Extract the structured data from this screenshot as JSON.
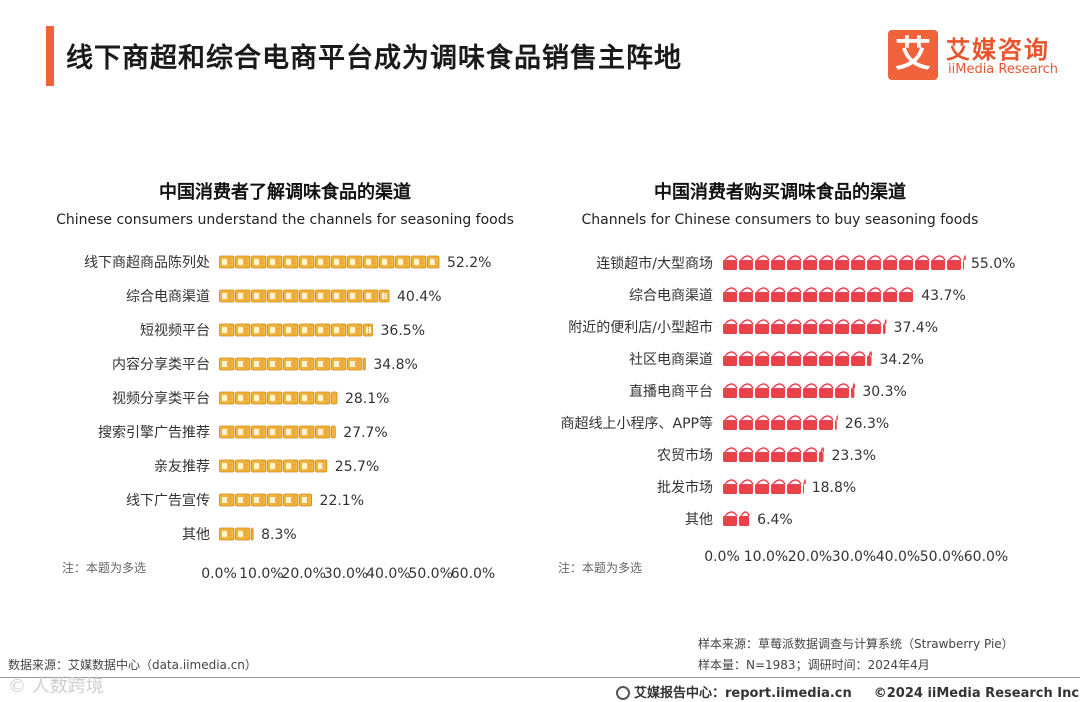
{
  "header": {
    "title": "线下商超和综合电商平台成为调味食品销售主阵地"
  },
  "logo": {
    "mark": "艾",
    "cn": "艾媒咨询",
    "en": "iiMedia Research"
  },
  "chart_data": [
    {
      "type": "bar",
      "title": "中国消费者了解调味食品的渠道",
      "subtitle": "Chinese consumers understand the channels for seasoning foods",
      "categories": [
        "线下商超商品陈列处",
        "综合电商渠道",
        "短视频平台",
        "内容分享类平台",
        "视频分享类平台",
        "搜索引擎广告推荐",
        "亲友推荐",
        "线下广告宣传",
        "其他"
      ],
      "values": [
        52.2,
        40.4,
        36.5,
        34.8,
        28.1,
        27.7,
        25.7,
        22.1,
        8.3
      ],
      "value_labels": [
        "52.2%",
        "40.4%",
        "36.5%",
        "34.8%",
        "28.1%",
        "27.7%",
        "25.7%",
        "22.1%",
        "8.3%"
      ],
      "xticks": [
        "0.0%",
        "10.0%",
        "20.0%",
        "30.0%",
        "40.0%",
        "50.0%",
        "60.0%"
      ],
      "xlim": [
        0,
        60
      ],
      "mark": "ticket",
      "color": "#f3b33d",
      "note": "注：本题为多选"
    },
    {
      "type": "bar",
      "title": "中国消费者购买调味食品的渠道",
      "subtitle": "Channels for Chinese consumers to buy seasoning foods",
      "categories": [
        "连锁超市/大型商场",
        "综合电商渠道",
        "附近的便利店/小型超市",
        "社区电商渠道",
        "直播电商平台",
        "商超线上小程序、APP等",
        "农贸市场",
        "批发市场",
        "其他"
      ],
      "values": [
        55.0,
        43.7,
        37.4,
        34.2,
        30.3,
        26.3,
        23.3,
        18.8,
        6.4
      ],
      "value_labels": [
        "55.0%",
        "43.7%",
        "37.4%",
        "34.2%",
        "30.3%",
        "26.3%",
        "23.3%",
        "18.8%",
        "6.4%"
      ],
      "xticks": [
        "0.0%",
        "10.0%",
        "20.0%",
        "30.0%",
        "40.0%",
        "50.0%",
        "60.0%"
      ],
      "xlim": [
        0,
        60
      ],
      "mark": "bag",
      "color": "#e9424a",
      "note": "注：本题为多选"
    }
  ],
  "footer": {
    "data_source": "数据来源：艾媒数据中心（data.iimedia.cn）",
    "sample_source": "样本来源：草莓派数据调查与计算系统（Strawberry Pie）",
    "sample_size": "样本量：N=1983；调研时间：2024年4月",
    "report_center": "艾媒报告中心：report.iimedia.cn",
    "copyright": "©2024  iiMedia Research Inc",
    "watermark": "©  人数跨境"
  },
  "icons": {
    "footer_globe": "globe-icon"
  }
}
